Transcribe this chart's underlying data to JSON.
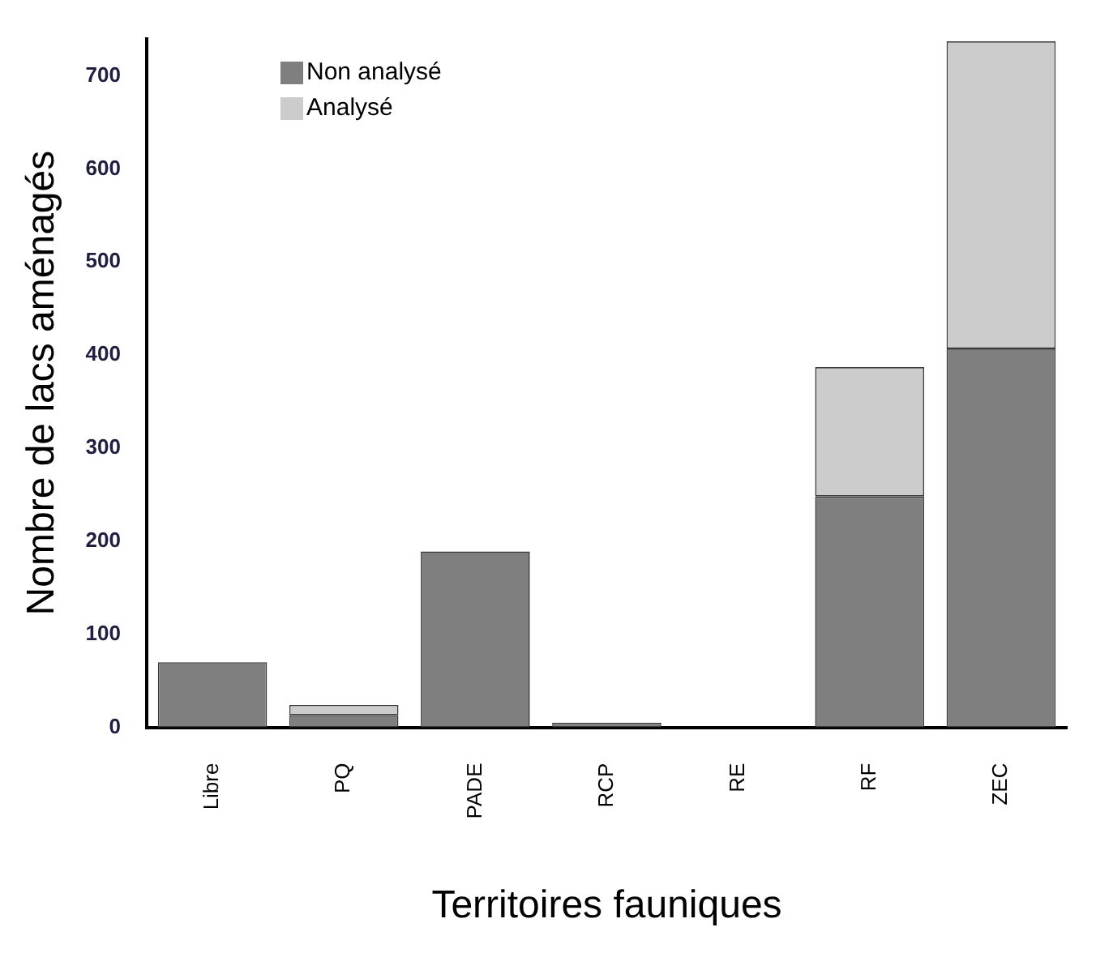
{
  "chart_data": {
    "type": "bar",
    "stacked": true,
    "xlabel": "Territoires fauniques",
    "ylabel": "Nombre de lacs aménagés",
    "categories": [
      "Libre",
      "PQ",
      "PADE",
      "RCP",
      "RE",
      "RF",
      "ZEC"
    ],
    "series": [
      {
        "name": "Non analysé",
        "color": "#7f7f7f",
        "values": [
          70,
          13,
          189,
          5,
          0,
          248,
          407
        ]
      },
      {
        "name": "Analysé",
        "color": "#cccccc",
        "values": [
          0,
          11,
          0,
          0,
          0,
          139,
          330
        ]
      }
    ],
    "ylim": [
      0,
      740
    ],
    "yticks": [
      0,
      100,
      200,
      300,
      400,
      500,
      600,
      700
    ],
    "grid": false,
    "legend": "top left"
  }
}
